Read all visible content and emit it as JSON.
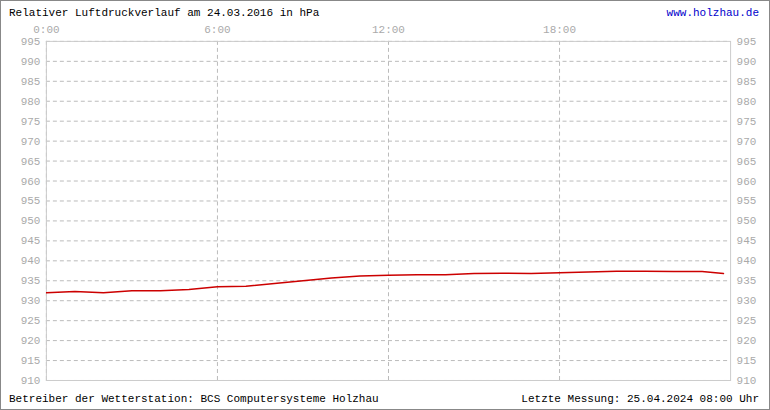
{
  "chart_data": {
    "type": "line",
    "title": "Relativer Luftdruckverlauf am 24.03.2016 in hPa",
    "source": "www.holzhau.de",
    "caption": "Betreiber der Wetterstation: BCS Computersysteme Holzhau",
    "note": "Letzte Messung: 25.04.2024 08:00 Uhr",
    "x": [
      0,
      1,
      2,
      3,
      4,
      5,
      6,
      7,
      8,
      9,
      10,
      11,
      12,
      13,
      14,
      15,
      16,
      17,
      18,
      19,
      20,
      21,
      22,
      23,
      23.75
    ],
    "values": [
      932.0,
      932.3,
      932.0,
      932.5,
      932.5,
      932.8,
      933.5,
      933.6,
      934.3,
      935.0,
      935.7,
      936.2,
      936.4,
      936.5,
      936.5,
      936.8,
      936.9,
      936.8,
      937.0,
      937.2,
      937.4,
      937.4,
      937.3,
      937.3,
      936.8
    ],
    "color": "#cc0000",
    "xlim": [
      0,
      24
    ],
    "xticks": [
      {
        "value": 0,
        "label": "0:00"
      },
      {
        "value": 6,
        "label": "6:00"
      },
      {
        "value": 12,
        "label": "12:00"
      },
      {
        "value": 18,
        "label": "18:00"
      }
    ],
    "ylim": [
      910,
      995
    ],
    "yticks": [
      910,
      915,
      920,
      925,
      930,
      935,
      940,
      945,
      950,
      955,
      960,
      965,
      970,
      975,
      980,
      985,
      990,
      995
    ],
    "grid": true
  }
}
